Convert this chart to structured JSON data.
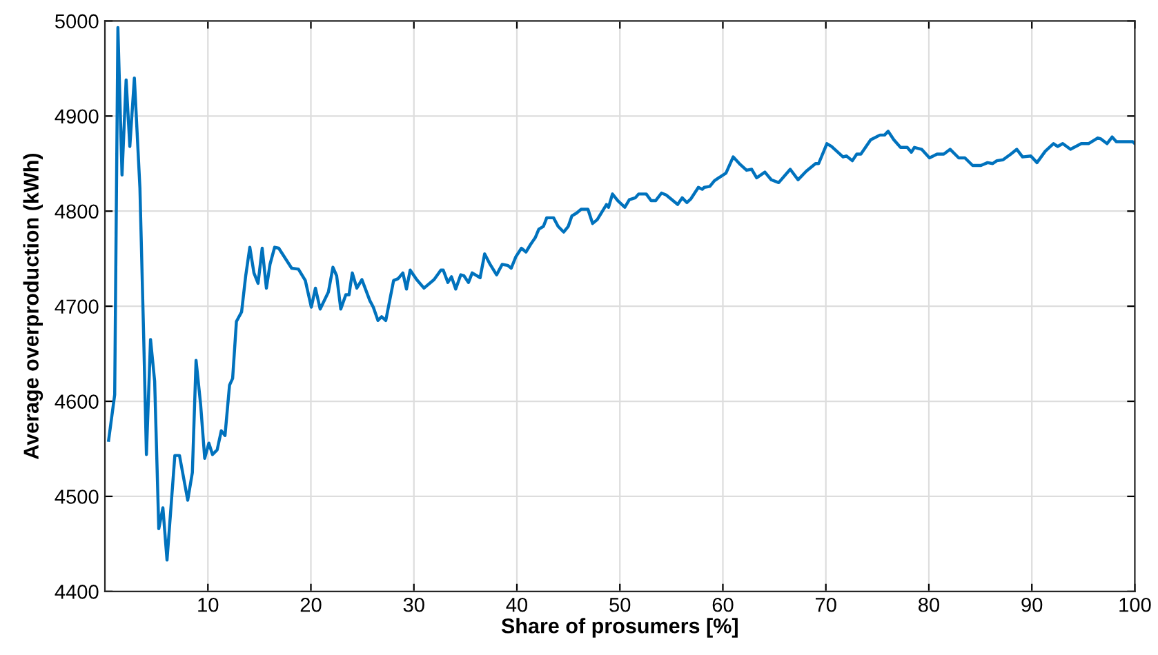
{
  "chart_data": {
    "type": "line",
    "xlabel": "Share of prosumers [%]",
    "ylabel": "Average overproduction (kWh)",
    "xlim": [
      0,
      100
    ],
    "xticks": [
      10,
      20,
      30,
      40,
      50,
      60,
      70,
      80,
      90,
      100
    ],
    "ylim": [
      4400,
      5000
    ],
    "yticks": [
      4400,
      4500,
      4600,
      4700,
      4800,
      4900,
      5000
    ],
    "grid": true,
    "line_style": "solid",
    "marker": "none",
    "series": [
      {
        "color": "#0072bd",
        "x": [
          0.36,
          0.95,
          1.26,
          1.66,
          2.06,
          2.42,
          2.86,
          3.4,
          3.76,
          4.03,
          4.43,
          4.83,
          5.23,
          5.63,
          6.03,
          6.79,
          7.24,
          8.04,
          8.49,
          8.85,
          9.29,
          9.69,
          10.09,
          10.45,
          10.9,
          11.3,
          11.66,
          12.1,
          12.4,
          12.77,
          13.27,
          13.67,
          14.07,
          14.47,
          14.87,
          15.27,
          15.68,
          16.03,
          16.48,
          16.88,
          18.13,
          18.79,
          19.46,
          20.04,
          20.44,
          20.9,
          21.7,
          22.14,
          22.5,
          22.9,
          23.39,
          23.7,
          24.02,
          24.46,
          24.95,
          25.72,
          26.06,
          26.51,
          26.87,
          27.27,
          28.03,
          28.47,
          28.93,
          29.28,
          29.64,
          30.27,
          30.98,
          31.96,
          32.62,
          32.85,
          33.3,
          33.65,
          34.06,
          34.55,
          34.86,
          35.3,
          35.66,
          36.43,
          36.87,
          37.4,
          38.03,
          38.57,
          39.1,
          39.45,
          39.9,
          40.44,
          40.88,
          41.33,
          41.78,
          42.13,
          42.58,
          42.9,
          43.56,
          44,
          44.54,
          44.99,
          45.34,
          45.8,
          46.24,
          46.9,
          47.35,
          47.8,
          48.25,
          48.7,
          48.9,
          49.28,
          49.8,
          50.48,
          50.92,
          51.5,
          51.82,
          52.56,
          53.03,
          53.47,
          54.04,
          54.49,
          55.61,
          56.05,
          56.5,
          56.9,
          57.62,
          58.0,
          58.2,
          58.73,
          59.18,
          59.6,
          60.3,
          61.0,
          61.6,
          62.3,
          62.8,
          63.28,
          64.08,
          64.7,
          65.42,
          66.54,
          67.3,
          68.1,
          69,
          69.3,
          70.1,
          70.55,
          71.67,
          72,
          72.57,
          73,
          73.4,
          74.35,
          75.25,
          75.7,
          76.05,
          76.6,
          77.25,
          77.9,
          78.3,
          78.6,
          79.3,
          80.06,
          80.8,
          81.45,
          82.07,
          82.9,
          83.5,
          84.25,
          85.05,
          85.7,
          86.2,
          86.6,
          87.2,
          87.96,
          88.54,
          89.1,
          89.9,
          90.5,
          91.3,
          92.1,
          92.5,
          93,
          93.75,
          94.8,
          95.5,
          96.4,
          96.7,
          97.3,
          97.8,
          98.2,
          99.8,
          100
        ],
        "values": [
          4559,
          4607,
          4993,
          4838,
          4938,
          4868,
          4940,
          4824,
          4670,
          4544,
          4665,
          4621,
          4466,
          4488,
          4433,
          4543,
          4543,
          4496,
          4525,
          4643,
          4597,
          4540,
          4556,
          4544,
          4549,
          4569,
          4564,
          4617,
          4624,
          4684,
          4694,
          4732,
          4762,
          4735,
          4724,
          4761,
          4719,
          4744,
          4762,
          4761,
          4740,
          4739,
          4727,
          4699,
          4719,
          4697,
          4715,
          4741,
          4732,
          4697,
          4712,
          4712,
          4735,
          4719,
          4728,
          4706,
          4699,
          4685,
          4689,
          4685,
          4727,
          4729,
          4735,
          4718,
          4738,
          4728,
          4719,
          4728,
          4738,
          4738,
          4725,
          4731,
          4718,
          4733,
          4732,
          4725,
          4735,
          4730,
          4755,
          4744,
          4733,
          4744,
          4743,
          4740,
          4752,
          4761,
          4757,
          4765,
          4772,
          4781,
          4784,
          4793,
          4793,
          4784,
          4778,
          4784,
          4795,
          4798,
          4802,
          4802,
          4787,
          4791,
          4799,
          4807,
          4804,
          4818,
          4811,
          4804,
          4812,
          4814,
          4818,
          4818,
          4811,
          4811,
          4819,
          4817,
          4807,
          4814,
          4809,
          4813,
          4825,
          4823,
          4825,
          4826,
          4832,
          4835,
          4840,
          4857,
          4850,
          4843,
          4844,
          4835,
          4841,
          4833,
          4830,
          4844,
          4833,
          4842,
          4850,
          4850,
          4871,
          4868,
          4857,
          4858,
          4853,
          4860,
          4860,
          4875,
          4880,
          4880,
          4884,
          4875,
          4867,
          4867,
          4862,
          4867,
          4865,
          4856,
          4860,
          4860,
          4865,
          4856,
          4856,
          4848,
          4848,
          4851,
          4850,
          4853,
          4854,
          4860,
          4865,
          4857,
          4858,
          4851,
          4863,
          4871,
          4868,
          4871,
          4865,
          4871,
          4871,
          4877,
          4876,
          4871,
          4878,
          4873,
          4873,
          4871
        ]
      }
    ]
  }
}
